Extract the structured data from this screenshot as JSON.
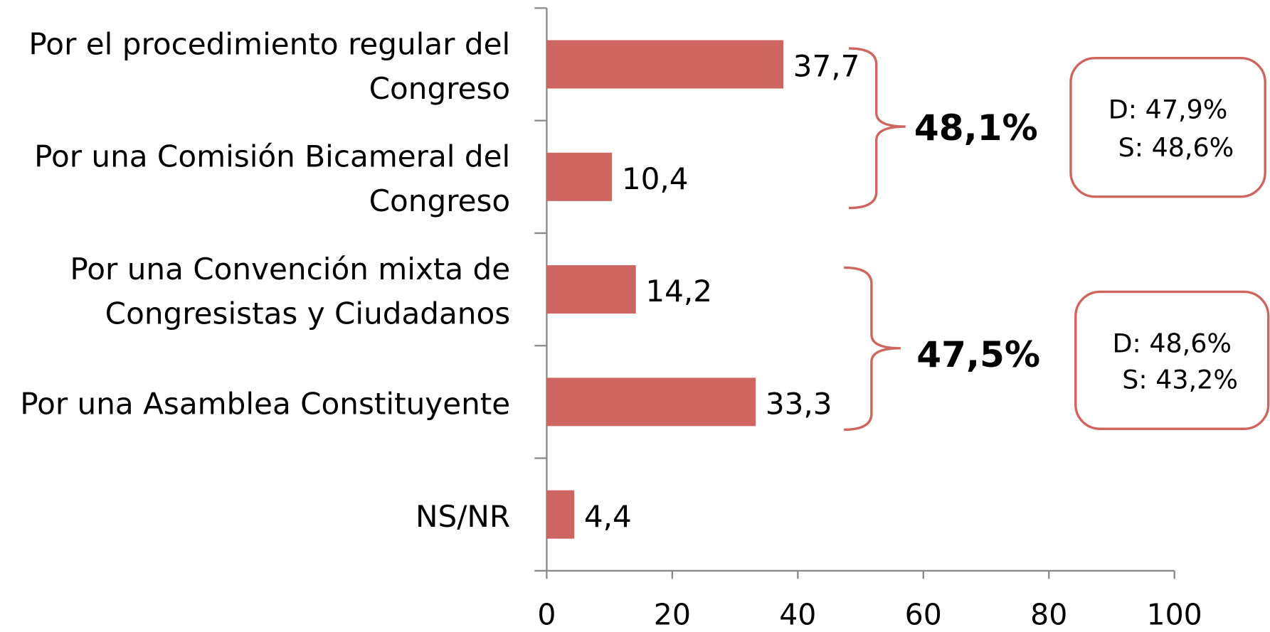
{
  "chart_data": {
    "type": "hbar",
    "categories": [
      [
        "Por el procedimiento regular del",
        "Congreso"
      ],
      [
        "Por una Comisión Bicameral del",
        "Congreso"
      ],
      [
        "Por una Convención mixta de",
        "Congresistas y Ciudadanos"
      ],
      [
        "Por una Asamblea Constituyente"
      ],
      [
        "NS/NR"
      ]
    ],
    "values": [
      37.7,
      10.4,
      14.2,
      33.3,
      4.4
    ],
    "value_labels": [
      "37,7",
      "10,4",
      "14,2",
      "33,3",
      "4,4"
    ],
    "color": "#cd6660",
    "xlim": [
      0,
      100
    ],
    "xticks": [
      0,
      20,
      40,
      60,
      80,
      100
    ],
    "annotations": [
      {
        "total": "48,1%",
        "detail": [
          "D: 47,9%",
          "S: 48,6%"
        ]
      },
      {
        "total": "47,5%",
        "detail": [
          "D: 48,6%",
          "S: 43,2%"
        ]
      }
    ]
  }
}
